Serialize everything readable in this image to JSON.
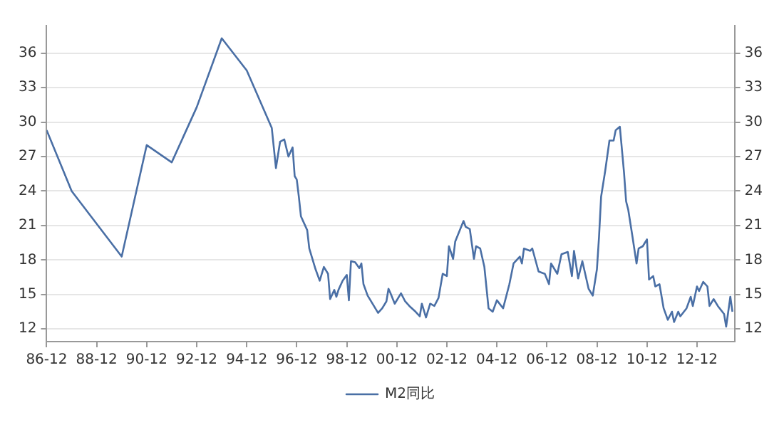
{
  "chart_data": {
    "type": "line",
    "legend": "bottom",
    "grid": "y",
    "marker": "none",
    "line_style": "solid",
    "xlim": [
      "1986-12",
      "2014-06"
    ],
    "xticks": [
      {
        "value": "1986-12",
        "label": "86-12"
      },
      {
        "value": "1988-12",
        "label": "88-12"
      },
      {
        "value": "1990-12",
        "label": "90-12"
      },
      {
        "value": "1992-12",
        "label": "92-12"
      },
      {
        "value": "1994-12",
        "label": "94-12"
      },
      {
        "value": "1996-12",
        "label": "96-12"
      },
      {
        "value": "1998-12",
        "label": "98-12"
      },
      {
        "value": "2000-12",
        "label": "00-12"
      },
      {
        "value": "2002-12",
        "label": "02-12"
      },
      {
        "value": "2004-12",
        "label": "04-12"
      },
      {
        "value": "2006-12",
        "label": "06-12"
      },
      {
        "value": "2008-12",
        "label": "08-12"
      },
      {
        "value": "2010-12",
        "label": "10-12"
      },
      {
        "value": "2012-12",
        "label": "12-12"
      }
    ],
    "ylim": [
      10.9,
      38.4
    ],
    "yticks": [
      12,
      15,
      18,
      21,
      24,
      27,
      30,
      33,
      36
    ],
    "y2lim": [
      10.9,
      38.4
    ],
    "y2ticks": [
      12,
      15,
      18,
      21,
      24,
      27,
      30,
      33,
      36
    ],
    "series": [
      {
        "name": "M2同比",
        "color": "#4a6fa5",
        "x": [
          "1986-12",
          "1987-12",
          "1989-12",
          "1990-12",
          "1991-12",
          "1992-12",
          "1993-12",
          "1994-12",
          "1995-12",
          "1996-02",
          "1996-04",
          "1996-06",
          "1996-08",
          "1996-10",
          "1996-11",
          "1996-12",
          "1997-01",
          "1997-02",
          "1997-05",
          "1997-06",
          "1997-09",
          "1997-11",
          "1998-01",
          "1998-03",
          "1998-04",
          "1998-06",
          "1998-07",
          "1998-08",
          "1998-10",
          "1998-12",
          "1999-01",
          "1999-02",
          "1999-04",
          "1999-06",
          "1999-07",
          "1999-08",
          "1999-10",
          "2000-01",
          "2000-03",
          "2000-05",
          "2000-07",
          "2000-08",
          "2000-09",
          "2000-11",
          "2001-02",
          "2001-04",
          "2001-06",
          "2001-09",
          "2001-11",
          "2001-12",
          "2002-02",
          "2002-04",
          "2002-06",
          "2002-08",
          "2002-10",
          "2002-12",
          "2003-01",
          "2003-03",
          "2003-04",
          "2003-06",
          "2003-08",
          "2003-09",
          "2003-11",
          "2004-01",
          "2004-02",
          "2004-04",
          "2004-06",
          "2004-08",
          "2004-10",
          "2004-12",
          "2005-03",
          "2005-06",
          "2005-08",
          "2005-11",
          "2005-12",
          "2006-01",
          "2006-04",
          "2006-05",
          "2006-08",
          "2006-11",
          "2007-01",
          "2007-02",
          "2007-05",
          "2007-07",
          "2007-10",
          "2007-12",
          "2008-01",
          "2008-03",
          "2008-05",
          "2008-08",
          "2008-10",
          "2008-12",
          "2009-01",
          "2009-02",
          "2009-04",
          "2009-06",
          "2009-08",
          "2009-09",
          "2009-11",
          "2010-01",
          "2010-02",
          "2010-03",
          "2010-05",
          "2010-07",
          "2010-08",
          "2010-10",
          "2010-12",
          "2011-01",
          "2011-03",
          "2011-04",
          "2011-06",
          "2011-08",
          "2011-10",
          "2011-12",
          "2012-01",
          "2012-03",
          "2012-04",
          "2012-07",
          "2012-09",
          "2012-10",
          "2012-12",
          "2013-01",
          "2013-03",
          "2013-05",
          "2013-06",
          "2013-08",
          "2013-10",
          "2014-01",
          "2014-02",
          "2014-03",
          "2014-04",
          "2014-05"
        ],
        "values": [
          29.3,
          24.0,
          18.3,
          28.0,
          26.5,
          31.3,
          37.3,
          34.5,
          29.5,
          26.0,
          28.3,
          28.5,
          27.0,
          27.8,
          25.3,
          25.0,
          23.5,
          21.8,
          20.6,
          19.0,
          17.2,
          16.2,
          17.4,
          16.8,
          14.6,
          15.4,
          14.8,
          15.4,
          16.2,
          16.7,
          14.5,
          17.9,
          17.8,
          17.3,
          17.7,
          15.9,
          14.9,
          14.0,
          13.4,
          13.8,
          14.4,
          15.5,
          15.1,
          14.2,
          15.1,
          14.4,
          14.0,
          13.5,
          13.1,
          14.2,
          13.0,
          14.2,
          14.0,
          14.7,
          16.8,
          16.6,
          19.2,
          18.1,
          19.6,
          20.5,
          21.4,
          20.9,
          20.7,
          18.1,
          19.2,
          19.0,
          17.4,
          13.8,
          13.5,
          14.5,
          13.8,
          15.9,
          17.7,
          18.3,
          17.7,
          19.0,
          18.8,
          19.0,
          17.0,
          16.8,
          15.9,
          17.7,
          16.8,
          18.5,
          18.7,
          16.6,
          18.8,
          16.4,
          17.9,
          15.5,
          14.9,
          17.2,
          20.0,
          23.5,
          25.8,
          28.4,
          28.4,
          29.3,
          29.6,
          25.6,
          23.1,
          22.4,
          20.1,
          17.7,
          19.0,
          19.2,
          19.8,
          16.3,
          16.6,
          15.7,
          15.9,
          13.8,
          12.8,
          13.5,
          12.6,
          13.5,
          13.1,
          13.8,
          14.8,
          14.0,
          15.7,
          15.3,
          16.1,
          15.7,
          14.0,
          14.6,
          14.0,
          13.3,
          12.2,
          13.5,
          14.8,
          13.5
        ]
      }
    ]
  }
}
